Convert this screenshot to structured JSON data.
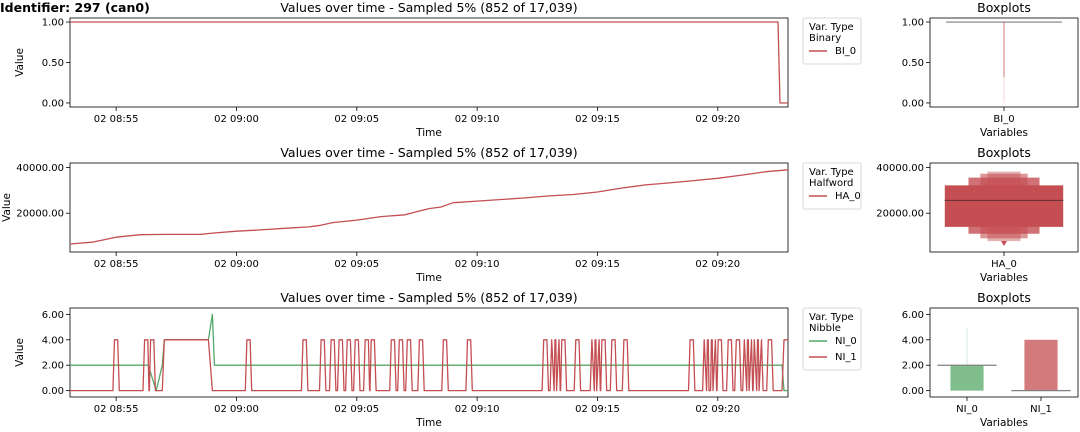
{
  "header": "Identifier: 297 (can0)",
  "colors": {
    "red": "#c44e52",
    "green": "#55a868",
    "gray": "#808080"
  },
  "time_ticks": [
    "02 08:55",
    "02 09:00",
    "02 09:05",
    "02 09:10",
    "02 09:15",
    "02 09:20"
  ],
  "chart_data": [
    {
      "type": "line",
      "title": "Values over time - Sampled 5% (852 of 17,039)",
      "xlabel": "Time",
      "ylabel": "Value",
      "xlim": [
        "08:53:05",
        "09:22:55"
      ],
      "ylim": [
        -0.05,
        1.05
      ],
      "yticks": [
        "0.00",
        "0.50",
        "1.00"
      ],
      "legend": {
        "title": "Var. Type\nBinary",
        "placement": "outside-right"
      },
      "series": [
        {
          "name": "BI_0",
          "color": "#c44e52",
          "points": [
            [
              "08:53:05",
              1
            ],
            [
              "09:22:30",
              1
            ],
            [
              "09:22:35",
              0
            ],
            [
              "09:22:55",
              0
            ]
          ]
        }
      ]
    },
    {
      "type": "boxen",
      "title": "Boxplots",
      "xlabel": "Variables",
      "ylim": [
        -0.05,
        1.05
      ],
      "yticks": [
        "0.00",
        "0.50",
        "1.00"
      ],
      "categories": [
        "BI_0"
      ],
      "boxes": [
        {
          "category": "BI_0",
          "color": "#c44e52",
          "median": 1,
          "whisker_low": 0.32,
          "range": [
            0,
            1
          ]
        }
      ]
    },
    {
      "type": "line",
      "title": "Values over time - Sampled 5% (852 of 17,039)",
      "xlabel": "Time",
      "ylabel": "Value",
      "xlim": [
        "08:53:05",
        "09:22:55"
      ],
      "ylim": [
        3000,
        42000
      ],
      "yticks": [
        "20000.00",
        "40000.00"
      ],
      "legend": {
        "title": "Var. Type\nHalfword",
        "placement": "outside-right"
      },
      "series": [
        {
          "name": "HA_0",
          "color": "#c44e52",
          "points": [
            [
              "08:53:05",
              6500
            ],
            [
              "08:54:00",
              7300
            ],
            [
              "08:55:00",
              9500
            ],
            [
              "08:56:00",
              10600
            ],
            [
              "08:57:00",
              10700
            ],
            [
              "08:58:30",
              10700
            ],
            [
              "08:59:00",
              11300
            ],
            [
              "09:00:00",
              12100
            ],
            [
              "09:01:00",
              12700
            ],
            [
              "09:02:00",
              13400
            ],
            [
              "09:03:00",
              14000
            ],
            [
              "09:03:30",
              14700
            ],
            [
              "09:04:00",
              15900
            ],
            [
              "09:05:00",
              17000
            ],
            [
              "09:06:00",
              18500
            ],
            [
              "09:07:00",
              19300
            ],
            [
              "09:07:30",
              20700
            ],
            [
              "09:08:00",
              22000
            ],
            [
              "09:08:30",
              22700
            ],
            [
              "09:09:00",
              24600
            ],
            [
              "09:10:00",
              25300
            ],
            [
              "09:11:00",
              26000
            ],
            [
              "09:12:00",
              26700
            ],
            [
              "09:13:00",
              27600
            ],
            [
              "09:14:00",
              28200
            ],
            [
              "09:15:00",
              29300
            ],
            [
              "09:16:00",
              31000
            ],
            [
              "09:17:00",
              32400
            ],
            [
              "09:18:00",
              33300
            ],
            [
              "09:19:00",
              34300
            ],
            [
              "09:20:00",
              35300
            ],
            [
              "09:21:00",
              36700
            ],
            [
              "09:22:00",
              38200
            ],
            [
              "09:22:55",
              39000
            ]
          ]
        }
      ]
    },
    {
      "type": "boxen",
      "title": "Boxplots",
      "xlabel": "Variables",
      "ylim": [
        3000,
        42000
      ],
      "yticks": [
        "20000.00",
        "40000.00"
      ],
      "categories": [
        "HA_0"
      ],
      "boxes": [
        {
          "category": "HA_0",
          "color": "#c44e52",
          "median": 25600,
          "levels": [
            [
              14000,
              32200
            ],
            [
              11000,
              35600
            ],
            [
              9000,
              37300
            ],
            [
              7800,
              38200
            ]
          ],
          "outlier_low": 6500
        }
      ]
    },
    {
      "type": "line",
      "title": "Values over time - Sampled 5% (852 of 17,039)",
      "xlabel": "Time",
      "ylabel": "Value",
      "xlim": [
        "08:53:05",
        "09:22:55"
      ],
      "ylim": [
        -0.5,
        6.5
      ],
      "yticks": [
        "0.00",
        "2.00",
        "4.00",
        "6.00"
      ],
      "legend": {
        "title": "Var. Type\nNibble",
        "placement": "outside-right"
      },
      "series": [
        {
          "name": "NI_0",
          "color": "#55a868",
          "points": [
            [
              "08:53:05",
              2
            ],
            [
              "08:56:20",
              2
            ],
            [
              "08:56:40",
              0
            ],
            [
              "08:56:55",
              2
            ],
            [
              "08:57:00",
              4
            ],
            [
              "08:58:50",
              4
            ],
            [
              "08:59:00",
              6
            ],
            [
              "08:59:05",
              2
            ],
            [
              "09:22:40",
              2
            ],
            [
              "09:22:45",
              0
            ],
            [
              "09:22:55",
              0
            ]
          ]
        },
        {
          "name": "NI_1",
          "color": "#c44e52",
          "spikes_to": 4,
          "spike_times": [
            "08:55:00",
            "08:56:15",
            "08:56:30",
            "09:00:30",
            "09:02:50",
            "09:03:35",
            "09:04:00",
            "09:04:20",
            "09:04:40",
            "09:05:00",
            "09:05:25",
            "09:05:40",
            "09:06:30",
            "09:06:50",
            "09:07:10",
            "09:07:40",
            "09:08:40",
            "09:09:40",
            "09:12:50",
            "09:13:10",
            "09:13:20",
            "09:13:35",
            "09:14:10",
            "09:14:50",
            "09:15:00",
            "09:15:15",
            "09:15:40",
            "09:16:10",
            "09:18:55",
            "09:19:30",
            "09:19:40",
            "09:19:50",
            "09:20:05",
            "09:20:30",
            "09:20:50",
            "09:21:10",
            "09:21:20",
            "09:21:35",
            "09:21:45",
            "09:22:10"
          ],
          "points": [
            [
              "08:53:05",
              0
            ],
            [
              "08:56:55",
              0
            ],
            [
              "08:57:00",
              4
            ],
            [
              "08:58:50",
              4
            ],
            [
              "08:59:00",
              0
            ],
            [
              "09:22:40",
              0
            ],
            [
              "09:22:45",
              4
            ],
            [
              "09:22:55",
              4
            ]
          ]
        }
      ]
    },
    {
      "type": "boxen",
      "title": "Boxplots",
      "xlabel": "Variables",
      "ylim": [
        -0.5,
        6.5
      ],
      "yticks": [
        "0.00",
        "2.00",
        "4.00",
        "6.00"
      ],
      "categories": [
        "NI_0",
        "NI_1"
      ],
      "boxes": [
        {
          "category": "NI_0",
          "color": "#55a868",
          "median": 2,
          "box": [
            0,
            2
          ],
          "whisker_high": 4.9
        },
        {
          "category": "NI_1",
          "color": "#c44e52",
          "median": 0,
          "box": [
            0,
            4
          ]
        }
      ]
    }
  ]
}
